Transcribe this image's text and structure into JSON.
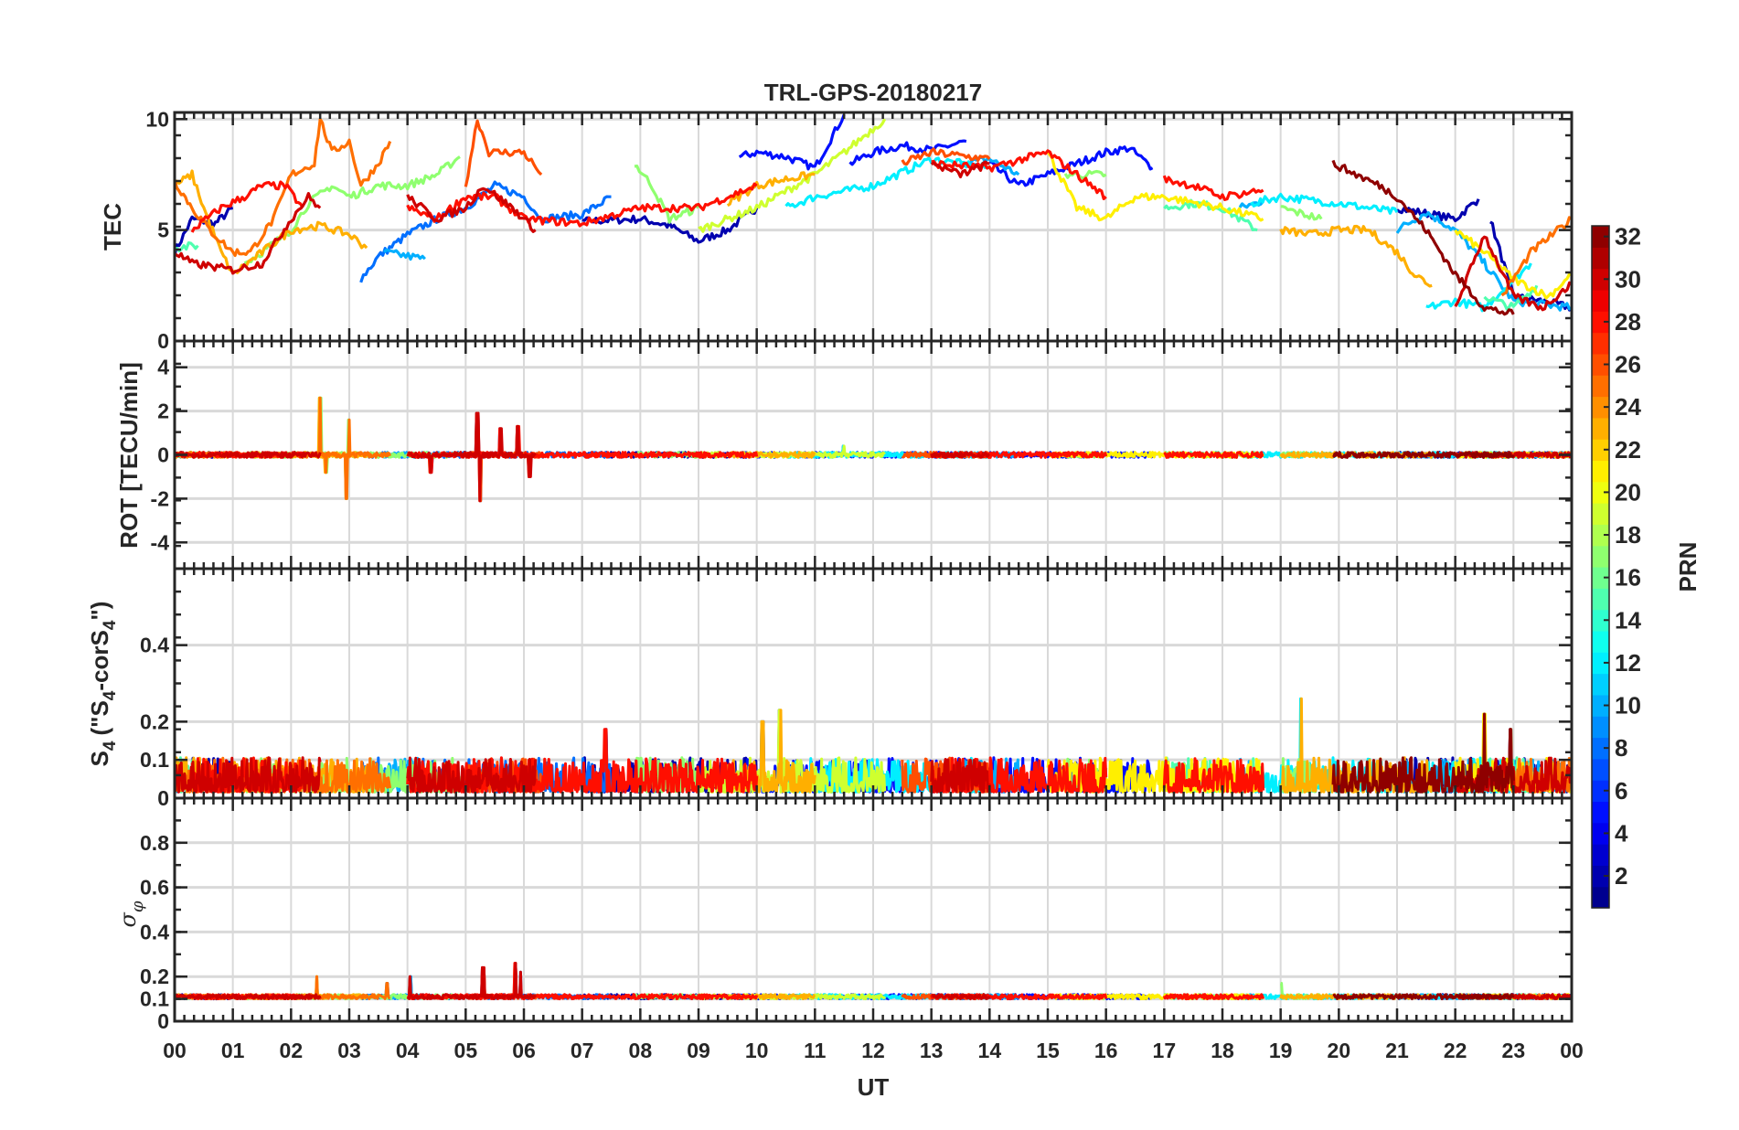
{
  "chart_data": {
    "type": "line",
    "title": "TRL-GPS-20180217",
    "xlabel": "UT",
    "xlim": [
      0,
      24
    ],
    "xticks": [
      "00",
      "01",
      "02",
      "03",
      "04",
      "05",
      "06",
      "07",
      "08",
      "09",
      "10",
      "11",
      "12",
      "13",
      "14",
      "15",
      "16",
      "17",
      "18",
      "19",
      "20",
      "21",
      "22",
      "23",
      "00"
    ],
    "colorbar": {
      "label": "PRN",
      "range": [
        1,
        32
      ],
      "ticks": [
        "2",
        "4",
        "6",
        "8",
        "10",
        "12",
        "14",
        "16",
        "18",
        "20",
        "22",
        "24",
        "26",
        "28",
        "30",
        "32"
      ],
      "colormap": "jet"
    },
    "panels": [
      {
        "id": "tec",
        "ylabel": "TEC",
        "ylim": [
          0,
          10.3
        ],
        "yticks": [
          0,
          5,
          10
        ],
        "ytick_labels": [
          "0",
          "5",
          "10"
        ]
      },
      {
        "id": "rot",
        "ylabel": "ROT [TECU/min]",
        "ylim": [
          -5.2,
          5.2
        ],
        "yticks": [
          -4,
          -2,
          0,
          2,
          4
        ],
        "ytick_labels": [
          "-4",
          "-2",
          "0",
          "2",
          "4"
        ],
        "noise": 0.12,
        "spikes": [
          [
            2.5,
            2.6
          ],
          [
            2.6,
            -0.8
          ],
          [
            2.95,
            -2.0
          ],
          [
            3.0,
            1.6
          ],
          [
            5.2,
            1.9
          ],
          [
            5.25,
            -2.1
          ],
          [
            5.6,
            1.2
          ],
          [
            5.9,
            1.3
          ],
          [
            6.1,
            -1.0
          ],
          [
            4.4,
            -0.8
          ],
          [
            11.5,
            0.4
          ]
        ]
      },
      {
        "id": "s4",
        "ylabel_parts": [
          "S",
          "4",
          "(\"S",
          "4",
          "-corS",
          "4",
          "\")"
        ],
        "ylim": [
          0,
          0.6
        ],
        "yticks": [
          0,
          0.1,
          0.2,
          0.4
        ],
        "ytick_labels": [
          "0",
          "0.1",
          "0.2",
          "0.4"
        ],
        "baseline": 0.04,
        "noise": 0.06,
        "spikes": [
          [
            7.4,
            0.18
          ],
          [
            10.1,
            0.2
          ],
          [
            10.4,
            0.23
          ],
          [
            19.35,
            0.26
          ],
          [
            22.5,
            0.22
          ],
          [
            22.95,
            0.18
          ]
        ]
      },
      {
        "id": "sigma",
        "ylabel_parts": [
          "σ",
          "φ"
        ],
        "ylim": [
          0,
          1
        ],
        "yticks": [
          0,
          0.1,
          0.2,
          0.4,
          0.6,
          0.8
        ],
        "ytick_labels": [
          "0",
          "0.1",
          "0.2",
          "0.4",
          "0.6",
          "0.8"
        ],
        "baseline": 0.11,
        "noise": 0.02,
        "spikes": [
          [
            2.45,
            0.2
          ],
          [
            3.65,
            0.17
          ],
          [
            4.05,
            0.2
          ],
          [
            5.3,
            0.24
          ],
          [
            5.85,
            0.26
          ],
          [
            5.95,
            0.22
          ],
          [
            19.0,
            0.17
          ]
        ]
      }
    ],
    "series": [
      {
        "prn": 2,
        "segments": [
          [
            [
              0,
              4
            ],
            [
              0.3,
              5.5
            ],
            [
              0.7,
              5.3
            ],
            [
              1,
              6
            ]
          ],
          [
            [
              7,
              5.4
            ],
            [
              8,
              5.5
            ],
            [
              8.5,
              5.2
            ],
            [
              9,
              4.5
            ],
            [
              9.5,
              5
            ],
            [
              10,
              6
            ]
          ],
          [
            [
              21,
              6
            ],
            [
              22,
              5.5
            ],
            [
              22.4,
              6.4
            ]
          ],
          [
            [
              22.6,
              5.5
            ],
            [
              23,
              2
            ],
            [
              23.5,
              1.8
            ],
            [
              24,
              1.5
            ]
          ]
        ]
      },
      {
        "prn": 5,
        "segments": [
          [
            [
              9.7,
              8.3
            ],
            [
              10,
              8.5
            ],
            [
              10.5,
              8.3
            ],
            [
              11,
              7.8
            ],
            [
              11.5,
              10.2
            ]
          ],
          [
            [
              11.6,
              8
            ],
            [
              12,
              8.5
            ],
            [
              12.5,
              8.8
            ],
            [
              13,
              8.6
            ],
            [
              13.6,
              9
            ]
          ],
          [
            [
              14,
              8
            ],
            [
              14.5,
              7
            ],
            [
              15,
              7.5
            ],
            [
              15.5,
              8
            ],
            [
              16,
              8.5
            ],
            [
              16.4,
              8.7
            ],
            [
              16.8,
              7.8
            ]
          ]
        ]
      },
      {
        "prn": 8,
        "segments": [
          [
            [
              3.2,
              2.8
            ],
            [
              3.5,
              3.8
            ],
            [
              4,
              4.8
            ],
            [
              4.5,
              5.5
            ],
            [
              5,
              6
            ],
            [
              5.5,
              7
            ],
            [
              6,
              6.5
            ],
            [
              6.3,
              5.5
            ],
            [
              7,
              5.7
            ],
            [
              7.5,
              6.5
            ]
          ]
        ]
      },
      {
        "prn": 10,
        "segments": [
          [
            [
              3.6,
              4
            ],
            [
              4.3,
              3.7
            ]
          ],
          [
            [
              13.5,
              8
            ],
            [
              14,
              8.2
            ],
            [
              14.5,
              7.5
            ]
          ],
          [
            [
              18.3,
              6
            ],
            [
              18.7,
              6.3
            ]
          ],
          [
            [
              21,
              5
            ],
            [
              21.5,
              5.8
            ],
            [
              22,
              5
            ],
            [
              22.5,
              3.5
            ],
            [
              23,
              1.8
            ],
            [
              24,
              1.5
            ]
          ]
        ]
      },
      {
        "prn": 12,
        "segments": [
          [
            [
              10.5,
              6
            ],
            [
              11,
              6.5
            ],
            [
              12,
              7
            ],
            [
              13,
              8.2
            ],
            [
              14,
              7.8
            ]
          ],
          [
            [
              18.5,
              6.2
            ],
            [
              19,
              6.5
            ],
            [
              20,
              6.2
            ],
            [
              21,
              5.8
            ]
          ],
          [
            [
              21.5,
              1.5
            ],
            [
              22,
              1.8
            ],
            [
              22.5,
              1.5
            ],
            [
              23.3,
              3.5
            ]
          ]
        ]
      },
      {
        "prn": 15,
        "segments": [
          [
            [
              0,
              4.2
            ],
            [
              0.4,
              4.3
            ]
          ],
          [
            [
              17,
              6
            ],
            [
              17.5,
              6.2
            ],
            [
              18,
              6
            ],
            [
              18.6,
              5
            ]
          ],
          [
            [
              22.5,
              2
            ],
            [
              23,
              1.5
            ],
            [
              23.4,
              2.5
            ]
          ]
        ]
      },
      {
        "prn": 17,
        "segments": [
          [
            [
              1.2,
              3.5
            ],
            [
              1.5,
              4
            ],
            [
              2,
              5
            ],
            [
              2.3,
              6.2
            ],
            [
              2.7,
              7
            ],
            [
              3,
              6.5
            ],
            [
              3.5,
              7
            ],
            [
              4,
              7
            ],
            [
              4.5,
              7.5
            ],
            [
              4.9,
              8.3
            ]
          ],
          [
            [
              7.9,
              8
            ],
            [
              8.2,
              7
            ],
            [
              8.5,
              5.5
            ],
            [
              9,
              6
            ]
          ],
          [
            [
              15.3,
              7.5
            ],
            [
              16,
              7.5
            ]
          ],
          [
            [
              19,
              6
            ],
            [
              19.7,
              5.5
            ]
          ]
        ]
      },
      {
        "prn": 19,
        "segments": [
          [
            [
              9,
              5
            ],
            [
              9.5,
              5.5
            ],
            [
              10,
              6
            ],
            [
              11,
              7.5
            ],
            [
              11.5,
              8.5
            ],
            [
              12.2,
              10
            ]
          ]
        ]
      },
      {
        "prn": 21,
        "segments": [
          [
            [
              15,
              8.5
            ],
            [
              15.5,
              6
            ],
            [
              16,
              5.5
            ],
            [
              16.5,
              6.5
            ],
            [
              17,
              6.5
            ],
            [
              18,
              6
            ],
            [
              18.7,
              5.5
            ]
          ],
          [
            [
              22,
              5
            ],
            [
              22.5,
              4
            ],
            [
              23,
              2.8
            ],
            [
              23.6,
              2
            ],
            [
              24,
              3
            ]
          ]
        ]
      },
      {
        "prn": 23,
        "segments": [
          [
            [
              0,
              7
            ],
            [
              0.3,
              7.5
            ],
            [
              0.5,
              6
            ],
            [
              0.8,
              4
            ],
            [
              1,
              3
            ],
            [
              1.5,
              4
            ],
            [
              2,
              5
            ],
            [
              2.5,
              5.2
            ],
            [
              3,
              4.8
            ],
            [
              3.3,
              4.2
            ]
          ],
          [
            [
              9.5,
              6.2
            ],
            [
              10,
              7
            ],
            [
              10.5,
              7.3
            ],
            [
              11,
              7.5
            ]
          ],
          [
            [
              19,
              5
            ],
            [
              19.5,
              4.8
            ],
            [
              20,
              5
            ],
            [
              20.5,
              5
            ],
            [
              21,
              4
            ],
            [
              21.3,
              3
            ],
            [
              21.6,
              2.5
            ]
          ]
        ]
      },
      {
        "prn": 25,
        "segments": [
          [
            [
              0,
              7.2
            ],
            [
              0.3,
              6
            ],
            [
              0.6,
              5
            ],
            [
              1,
              4
            ],
            [
              1.3,
              4
            ],
            [
              1.7,
              5.5
            ],
            [
              2,
              7.5
            ],
            [
              2.4,
              8
            ],
            [
              2.5,
              10
            ],
            [
              2.7,
              8.5
            ],
            [
              3,
              9
            ],
            [
              3.2,
              7
            ],
            [
              3.5,
              8
            ],
            [
              3.7,
              9
            ]
          ],
          [
            [
              22.8,
              2
            ],
            [
              23.3,
              4
            ],
            [
              24,
              5.5
            ]
          ]
        ]
      },
      {
        "prn": 26,
        "segments": [
          [
            [
              5,
              7
            ],
            [
              5.2,
              10
            ],
            [
              5.4,
              8.5
            ],
            [
              6,
              8.5
            ],
            [
              6.3,
              7.5
            ]
          ],
          [
            [
              12.5,
              8
            ],
            [
              13,
              8.5
            ],
            [
              14,
              8.2
            ]
          ]
        ]
      },
      {
        "prn": 28,
        "segments": [
          [
            [
              0.3,
              5
            ],
            [
              0.8,
              6
            ],
            [
              1.2,
              6.5
            ],
            [
              1.5,
              7
            ],
            [
              1.9,
              7
            ],
            [
              2.2,
              6
            ]
          ],
          [
            [
              4,
              6
            ],
            [
              4.5,
              5.5
            ],
            [
              5,
              6.5
            ],
            [
              5.5,
              6.5
            ],
            [
              6,
              5.5
            ],
            [
              7,
              5.3
            ],
            [
              8,
              6
            ],
            [
              9,
              6
            ],
            [
              10,
              7
            ]
          ],
          [
            [
              13,
              8
            ],
            [
              14,
              7.8
            ],
            [
              15,
              8.5
            ],
            [
              15.5,
              7.5
            ],
            [
              16,
              6.5
            ]
          ],
          [
            [
              17,
              7.3
            ],
            [
              17.5,
              7
            ],
            [
              18,
              6.5
            ],
            [
              18.7,
              6.8
            ]
          ]
        ]
      },
      {
        "prn": 30,
        "segments": [
          [
            [
              0,
              4
            ],
            [
              0.3,
              3.5
            ],
            [
              1,
              3.2
            ],
            [
              1.5,
              3.5
            ],
            [
              2,
              5.5
            ],
            [
              2.3,
              6.5
            ],
            [
              2.5,
              6
            ]
          ],
          [
            [
              4,
              6.5
            ],
            [
              4.5,
              5.5
            ],
            [
              5,
              6
            ],
            [
              5.3,
              7
            ],
            [
              5.8,
              6
            ],
            [
              6.2,
              5
            ]
          ],
          [
            [
              13,
              8
            ],
            [
              13.5,
              7.5
            ],
            [
              14,
              8
            ]
          ],
          [
            [
              22,
              1.5
            ],
            [
              22.5,
              4.8
            ],
            [
              23,
              2
            ],
            [
              23.5,
              1.5
            ],
            [
              24,
              2.6
            ]
          ]
        ]
      },
      {
        "prn": 32,
        "segments": [
          [
            [
              19.9,
              8
            ],
            [
              20.3,
              7.5
            ],
            [
              20.7,
              7
            ],
            [
              21,
              6.5
            ],
            [
              21.5,
              5
            ],
            [
              22,
              3
            ],
            [
              22.5,
              1.5
            ],
            [
              23,
              1.2
            ]
          ]
        ]
      }
    ]
  }
}
